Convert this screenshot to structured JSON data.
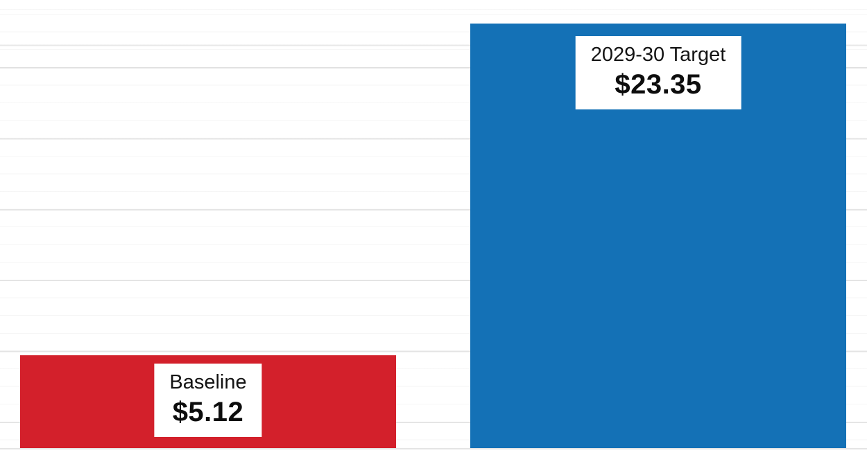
{
  "chart_data": {
    "type": "bar",
    "orientation": "vertical",
    "categories": [
      "Baseline",
      "2029-30 Target"
    ],
    "values": [
      5.12,
      23.35
    ],
    "value_labels": [
      "$5.12",
      "$23.35"
    ],
    "colors": [
      "#d3202b",
      "#1471b6"
    ],
    "label_box_bg": "#ffffff",
    "label_text_color": "#141414",
    "baseline_color": "#e4e4e4",
    "title": "",
    "xlabel": "",
    "ylabel": "",
    "ylim": [
      0,
      24.6
    ],
    "grid": true,
    "legend": false
  }
}
